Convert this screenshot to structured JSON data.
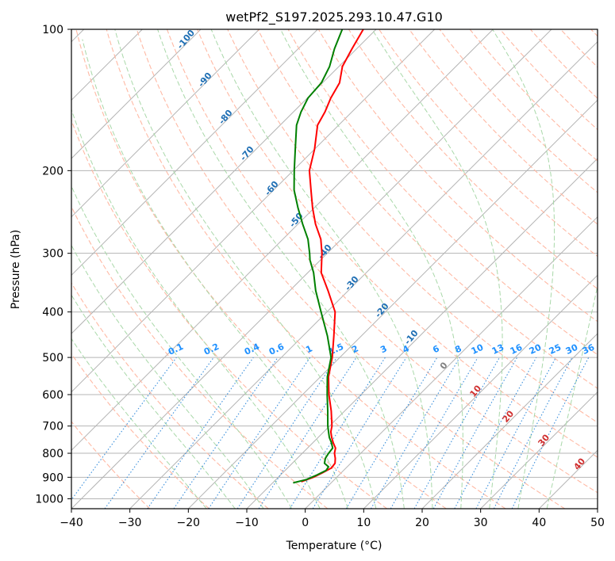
{
  "chart_data": {
    "type": "line",
    "title": "wetPf2_S197.2025.293.10.47.G10",
    "xlabel": "Temperature (°C)",
    "ylabel": "Pressure (hPa)",
    "xlim": [
      -40,
      50
    ],
    "ylim": [
      1050,
      100
    ],
    "yscale": "log",
    "skew": 45,
    "x_ticks": [
      -40,
      -30,
      -20,
      -10,
      0,
      10,
      20,
      30,
      40,
      50
    ],
    "x_tick_labels": [
      "−40",
      "−30",
      "−20",
      "−10",
      "0",
      "10",
      "20",
      "30",
      "40",
      "50"
    ],
    "y_ticks": [
      100,
      200,
      300,
      400,
      500,
      600,
      700,
      800,
      900,
      1000
    ],
    "y_tick_labels": [
      "100",
      "200",
      "300",
      "400",
      "500",
      "600",
      "700",
      "800",
      "900",
      "1000"
    ],
    "grid": true,
    "series": [
      {
        "name": "Temperature",
        "color": "#ff0000",
        "points": [
          [
            920,
            -5.3
          ],
          [
            900,
            -4.0
          ],
          [
            880,
            -3.2
          ],
          [
            860,
            -2.5
          ],
          [
            840,
            -2.7
          ],
          [
            820,
            -3.5
          ],
          [
            800,
            -4.5
          ],
          [
            780,
            -5.2
          ],
          [
            760,
            -6.5
          ],
          [
            740,
            -7.7
          ],
          [
            720,
            -8.8
          ],
          [
            700,
            -9.6
          ],
          [
            650,
            -12.3
          ],
          [
            600,
            -15.5
          ],
          [
            550,
            -18.6
          ],
          [
            500,
            -21.3
          ],
          [
            450,
            -24.7
          ],
          [
            400,
            -28.6
          ],
          [
            360,
            -33.5
          ],
          [
            330,
            -37.7
          ],
          [
            300,
            -40.9
          ],
          [
            280,
            -43.5
          ],
          [
            260,
            -47.0
          ],
          [
            240,
            -50.3
          ],
          [
            220,
            -53.6
          ],
          [
            200,
            -57.2
          ],
          [
            180,
            -60.0
          ],
          [
            160,
            -63.6
          ],
          [
            150,
            -64.6
          ],
          [
            140,
            -66.0
          ],
          [
            130,
            -67.1
          ],
          [
            120,
            -69.4
          ],
          [
            110,
            -70.8
          ],
          [
            100,
            -72.2
          ]
        ]
      },
      {
        "name": "Dewpoint",
        "color": "#008000",
        "points": [
          [
            925,
            -6.5
          ],
          [
            910,
            -4.8
          ],
          [
            890,
            -3.8
          ],
          [
            870,
            -3.0
          ],
          [
            855,
            -3.2
          ],
          [
            840,
            -4.5
          ],
          [
            820,
            -5.2
          ],
          [
            800,
            -5.5
          ],
          [
            780,
            -5.7
          ],
          [
            760,
            -6.8
          ],
          [
            740,
            -8.1
          ],
          [
            720,
            -9.2
          ],
          [
            700,
            -10.3
          ],
          [
            650,
            -12.9
          ],
          [
            600,
            -15.8
          ],
          [
            550,
            -18.8
          ],
          [
            500,
            -21.5
          ],
          [
            450,
            -25.8
          ],
          [
            400,
            -31.0
          ],
          [
            360,
            -35.6
          ],
          [
            330,
            -39.0
          ],
          [
            310,
            -41.8
          ],
          [
            300,
            -43.0
          ],
          [
            280,
            -45.7
          ],
          [
            260,
            -49.2
          ],
          [
            240,
            -52.8
          ],
          [
            220,
            -56.5
          ],
          [
            200,
            -59.8
          ],
          [
            180,
            -63.3
          ],
          [
            160,
            -67.2
          ],
          [
            150,
            -68.7
          ],
          [
            140,
            -69.9
          ],
          [
            130,
            -70.2
          ],
          [
            120,
            -71.6
          ],
          [
            110,
            -73.8
          ],
          [
            100,
            -75.8
          ]
        ]
      }
    ],
    "dry_adiabat_labels": [
      "-100",
      "-90",
      "-80",
      "-70",
      "-60",
      "-50",
      "-40",
      "-30",
      "-20",
      "-10",
      "0",
      "10",
      "20",
      "30",
      "40"
    ],
    "mixing_ratio_labels": [
      "0.1",
      "0.2",
      "0.4",
      "0.6",
      "1",
      "1.5",
      "2",
      "3",
      "4",
      "6",
      "8",
      "10",
      "13",
      "16",
      "20",
      "25",
      "30",
      "36"
    ],
    "colors": {
      "isotherm": "#b4b4b4",
      "isobar": "#b4b4b4",
      "dry_adiabat": "#ffb9a4",
      "moist_adiabat": "#a9d8a9",
      "mixing_ratio": "#3a8fdc",
      "neg_label": "#1f6fb4",
      "mix_label": "#1e90ff",
      "pos_label": "#d03030",
      "zero_label": "#808080"
    }
  }
}
